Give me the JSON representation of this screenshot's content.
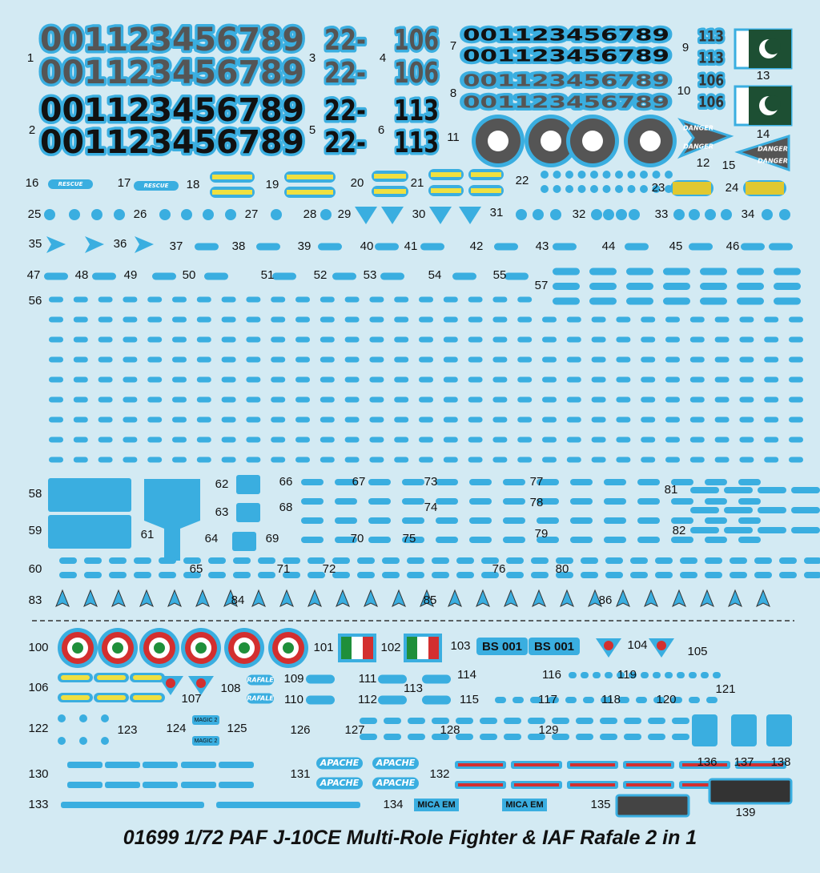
{
  "title": "01699 1/72 PAF J-10CE Multi-Role Fighter & IAF Rafale 2 in 1",
  "labels": [
    "1",
    "2",
    "3",
    "4",
    "5",
    "6",
    "7",
    "8",
    "9",
    "10",
    "11",
    "12",
    "13",
    "14",
    "15",
    "16",
    "17",
    "18",
    "19",
    "20",
    "21",
    "22",
    "23",
    "24",
    "25",
    "26",
    "27",
    "28",
    "29",
    "30",
    "31",
    "32",
    "33",
    "34",
    "35",
    "36",
    "37",
    "38",
    "39",
    "40",
    "41",
    "42",
    "43",
    "44",
    "45",
    "46",
    "47",
    "48",
    "49",
    "50",
    "51",
    "52",
    "53",
    "54",
    "55",
    "56",
    "57",
    "58",
    "59",
    "60",
    "61",
    "62",
    "63",
    "64",
    "65",
    "66",
    "67",
    "68",
    "69",
    "70",
    "71",
    "72",
    "73",
    "74",
    "75",
    "76",
    "77",
    "78",
    "79",
    "80",
    "81",
    "82",
    "83",
    "84",
    "85",
    "86",
    "100",
    "101",
    "102",
    "103",
    "104",
    "105",
    "106",
    "107",
    "108",
    "109",
    "110",
    "111",
    "112",
    "113",
    "114",
    "115",
    "116",
    "117",
    "118",
    "119",
    "120",
    "121",
    "122",
    "123",
    "124",
    "125",
    "126",
    "127",
    "128",
    "129",
    "130",
    "131",
    "132",
    "133",
    "134",
    "135",
    "136",
    "137",
    "138",
    "139"
  ],
  "decals": {
    "digits": "001123456789",
    "prefix": "22-",
    "code_a": "106",
    "code_b": "113",
    "danger": "DANGER",
    "rescue": "RESCUE",
    "serial": "BS 001",
    "rafale": "RAFALE",
    "apache": "APACHE",
    "magic": "MAGIC 2",
    "mica": "MICA EM"
  }
}
